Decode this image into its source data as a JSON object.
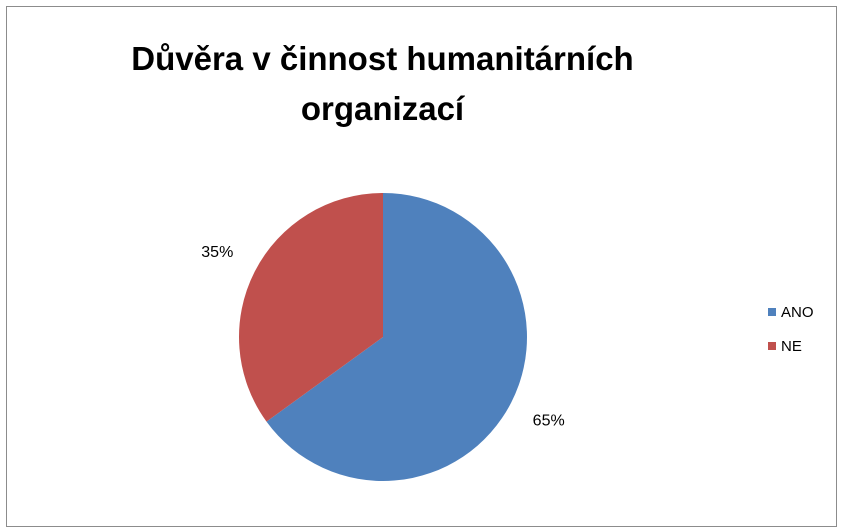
{
  "colors": {
    "ANO": "#4f81bd",
    "NE": "#c0504d"
  },
  "chart_data": {
    "type": "pie",
    "title": "Důvěra v činnost humanitárních organizací",
    "title_lines": [
      "Důvěra v činnost humanitárních",
      "organizací"
    ],
    "categories": [
      "ANO",
      "NE"
    ],
    "values": [
      65,
      35
    ],
    "data_labels": [
      "65%",
      "35%"
    ],
    "legend": {
      "placement": "right",
      "entries": [
        "ANO",
        "NE"
      ]
    }
  }
}
